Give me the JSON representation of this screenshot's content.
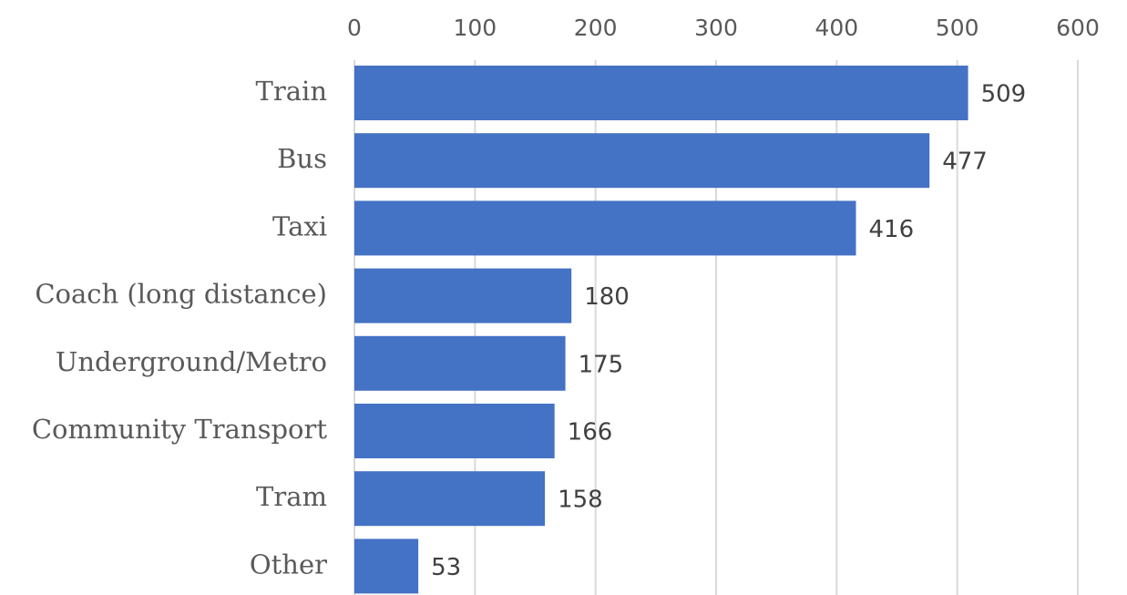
{
  "chart_data": {
    "type": "bar",
    "orientation": "horizontal",
    "categories": [
      "Train",
      "Bus",
      "Taxi",
      "Coach (long distance)",
      "Underground/Metro",
      "Community Transport",
      "Tram",
      "Other"
    ],
    "values": [
      509,
      477,
      416,
      180,
      175,
      166,
      158,
      53
    ],
    "x_ticks": [
      "0",
      "100",
      "200",
      "300",
      "400",
      "500",
      "600"
    ],
    "xlim": [
      0,
      600
    ],
    "x_axis_position": "top",
    "grid": true,
    "legend": "none",
    "bar_color": "#4472C4",
    "grid_color": "#D9D9D9",
    "title": "",
    "xlabel": "",
    "ylabel": ""
  }
}
